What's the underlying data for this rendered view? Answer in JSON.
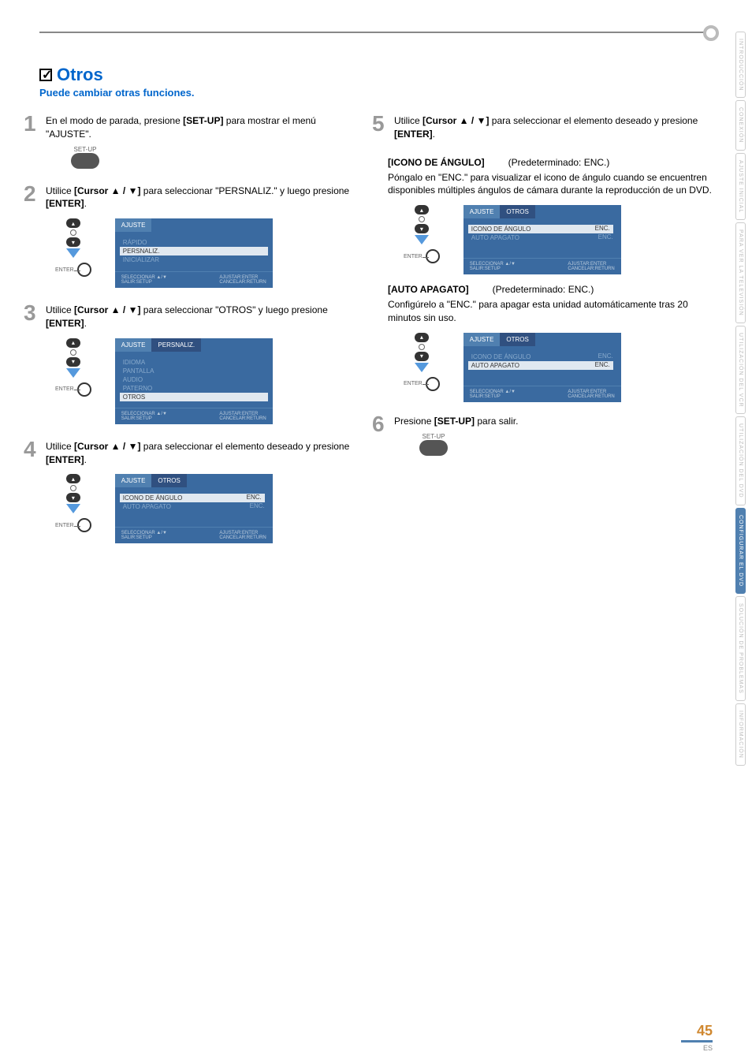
{
  "page": {
    "number": "45",
    "locale": "ES"
  },
  "section": {
    "title": "Otros",
    "subtitle": "Puede cambiar otras funciones."
  },
  "side_tabs": [
    {
      "label": "INTRODUCCIÓN",
      "active": false
    },
    {
      "label": "CONEXIÓN",
      "active": false
    },
    {
      "label": "AJUSTE INICIAL",
      "active": false
    },
    {
      "label": "PARA VER LA TELEVISIÓN",
      "active": false
    },
    {
      "label": "UTILIZACIÓN DEL VCR",
      "active": false
    },
    {
      "label": "UTILIZACIÓN DEL DVD",
      "active": false
    },
    {
      "label": "CONFIGURAR EL DVD",
      "active": true
    },
    {
      "label": "SOLUCIÓN DE PROBLEMAS",
      "active": false
    },
    {
      "label": "INFORMACIÓN",
      "active": false
    }
  ],
  "button_labels": {
    "setup": "SET-UP",
    "enter": "ENTER"
  },
  "osd_common": {
    "footer_left_sel": "SELECCIONAR ▲/▼",
    "footer_left_exit": "SALIR:SETUP",
    "footer_right_ok": "AJUSTAR:ENTER",
    "footer_right_cancel": "CANCELAR:RETURN",
    "tab_ajuste": "AJUSTE",
    "tab_persnaliz": "PERSNALIZ.",
    "tab_otros": "OTROS"
  },
  "steps_left": [
    {
      "num": "1",
      "text_pre": "En el modo de parada, presione ",
      "text_bold": "[SET-UP]",
      "text_post": " para mostrar el menú \"AJUSTE\".",
      "show_setup_btn": true
    },
    {
      "num": "2",
      "text_pre": "Utilice ",
      "text_bold": "[Cursor ▲ / ▼]",
      "text_post": " para seleccionar \"PERSNALIZ.\" y luego presione ",
      "text_bold2": "[ENTER]",
      "text_post2": ".",
      "osd": {
        "tabs": [
          "AJUSTE"
        ],
        "items": [
          {
            "label": "RÁPIDO",
            "sel": false
          },
          {
            "label": "PERSNALIZ.",
            "sel": true
          },
          {
            "label": "INICIALIZAR",
            "sel": false
          }
        ]
      }
    },
    {
      "num": "3",
      "text_pre": "Utilice ",
      "text_bold": "[Cursor ▲ / ▼]",
      "text_post": " para seleccionar \"OTROS\" y luego presione ",
      "text_bold2": "[ENTER]",
      "text_post2": ".",
      "osd": {
        "tabs": [
          "AJUSTE",
          "PERSNALIZ."
        ],
        "items": [
          {
            "label": "IDIOMA",
            "sel": false
          },
          {
            "label": "PANTALLA",
            "sel": false
          },
          {
            "label": "AUDIO",
            "sel": false
          },
          {
            "label": "PATERNO",
            "sel": false
          },
          {
            "label": "OTROS",
            "sel": true
          }
        ]
      }
    },
    {
      "num": "4",
      "text_pre": "Utilice ",
      "text_bold": "[Cursor ▲ / ▼]",
      "text_post": " para seleccionar el elemento deseado y presione ",
      "text_bold2": "[ENTER]",
      "text_post2": ".",
      "osd": {
        "tabs": [
          "AJUSTE",
          "OTROS"
        ],
        "rows": [
          {
            "label": "ICONO DE ÁNGULO",
            "val": "ENC.",
            "label_sel": true,
            "val_sel": true
          },
          {
            "label": "AUTO APAGATO",
            "val": "ENC.",
            "label_sel": false,
            "val_sel": false
          }
        ]
      }
    }
  ],
  "step5": {
    "num": "5",
    "text_pre": "Utilice ",
    "text_bold": "[Cursor ▲ / ▼]",
    "text_post": " para seleccionar el elemento deseado y presione ",
    "text_bold2": "[ENTER]",
    "text_post2": "."
  },
  "settings": [
    {
      "heading": "[ICONO DE ÁNGULO]",
      "default": "(Predeterminado: ENC.)",
      "desc": "Póngalo en \"ENC.\" para visualizar el icono de ángulo cuando se encuentren disponibles múltiples ángulos de cámara durante la reproducción de un DVD.",
      "osd": {
        "tabs": [
          "AJUSTE",
          "OTROS"
        ],
        "rows": [
          {
            "label": "ICONO DE ÁNGULO",
            "val": "ENC.",
            "label_sel": true,
            "val_sel": true
          },
          {
            "label": "AUTO APAGATO",
            "val": "ENC.",
            "label_sel": false,
            "val_sel": false
          }
        ]
      }
    },
    {
      "heading": "[AUTO APAGATO]",
      "default": "(Predeterminado: ENC.)",
      "desc": "Configúrelo a \"ENC.\" para apagar esta unidad automáticamente tras 20 minutos sin uso.",
      "osd": {
        "tabs": [
          "AJUSTE",
          "OTROS"
        ],
        "rows": [
          {
            "label": "ICONO DE ÁNGULO",
            "val": "ENC.",
            "label_sel": false,
            "val_sel": false
          },
          {
            "label": "AUTO APAGATO",
            "val": "ENC.",
            "label_sel": true,
            "val_sel": true
          }
        ]
      }
    }
  ],
  "step6": {
    "num": "6",
    "text_pre": "Presione ",
    "text_bold": "[SET-UP]",
    "text_post": " para salir."
  }
}
